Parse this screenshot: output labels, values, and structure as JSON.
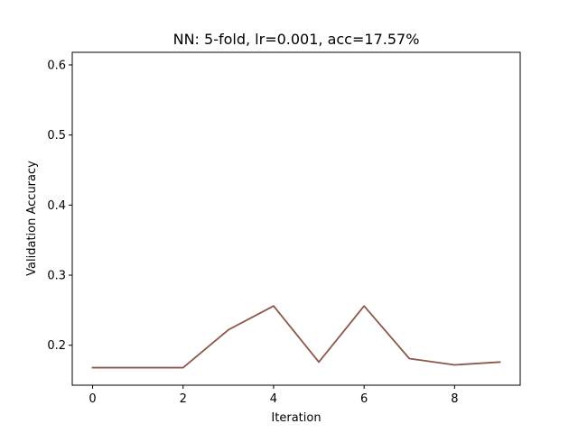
{
  "chart_data": {
    "type": "line",
    "title": "NN: 5-fold, lr=0.001, acc=17.57%",
    "xlabel": "Iteration",
    "ylabel": "Validation Accuracy",
    "xlim": [
      -0.45,
      9.45
    ],
    "ylim": [
      0.143,
      0.618
    ],
    "xticks": [
      0,
      2,
      4,
      6,
      8
    ],
    "yticks": [
      0.2,
      0.3,
      0.4,
      0.5,
      0.6
    ],
    "grid": false,
    "series": [
      {
        "color": "#8c564b",
        "x": [
          0,
          1,
          2,
          3,
          4,
          5,
          6,
          7,
          8,
          9
        ],
        "y": [
          0.168,
          0.168,
          0.168,
          0.222,
          0.256,
          0.176,
          0.256,
          0.181,
          0.172,
          0.176
        ]
      }
    ]
  }
}
